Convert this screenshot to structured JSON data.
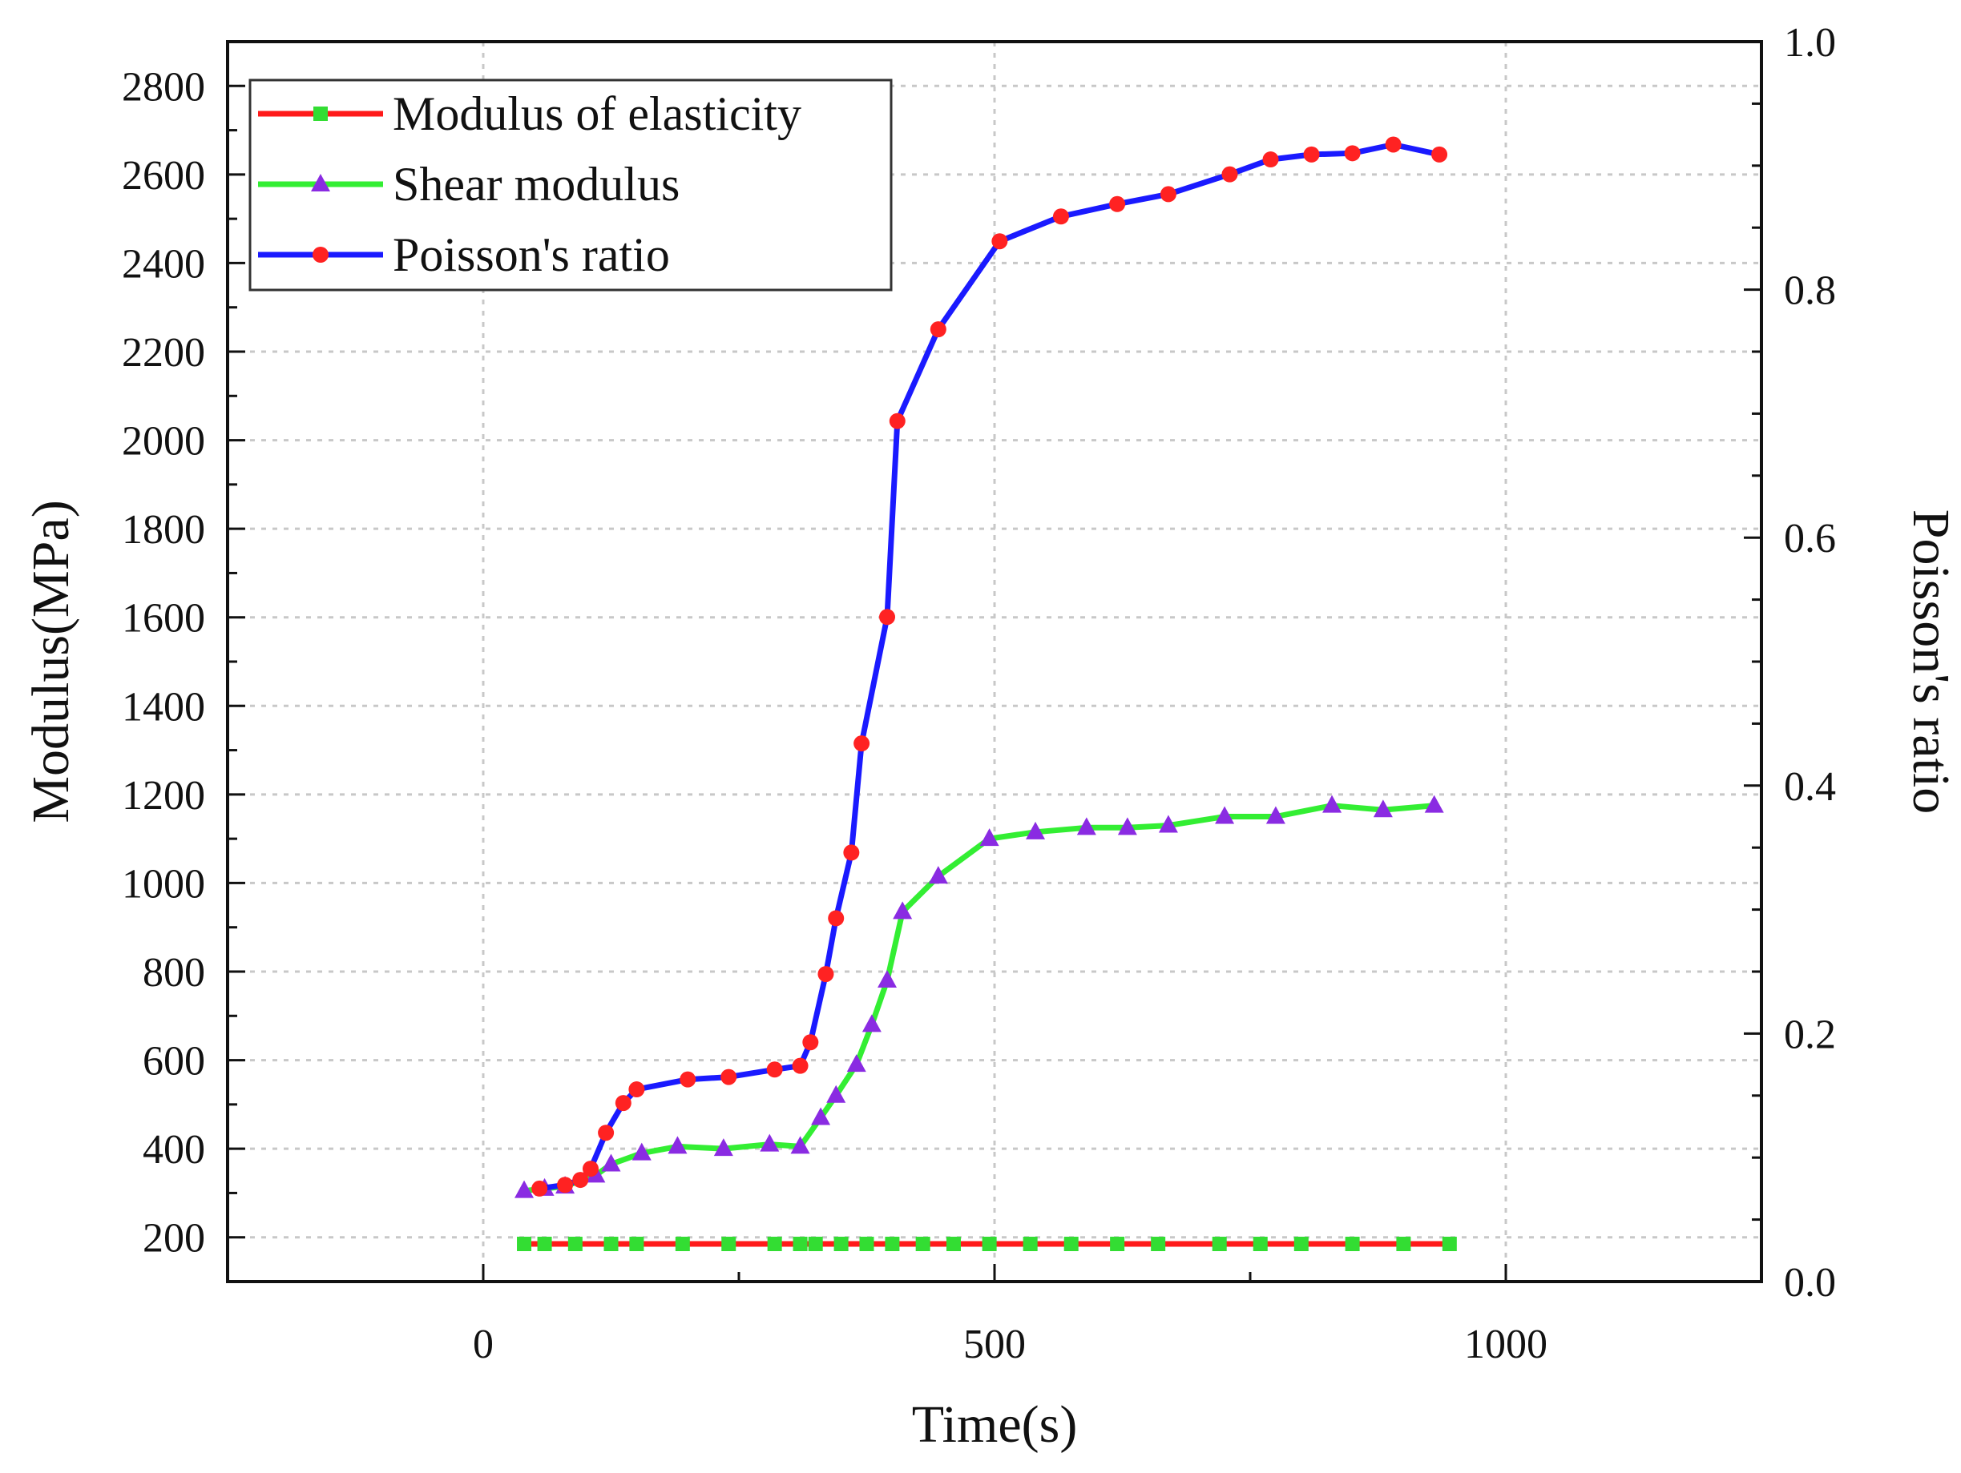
{
  "chart_data": {
    "type": "line",
    "title": "",
    "xlabel": "Time(s)",
    "ylabel": "Modulus(MPa)",
    "y2label": "Poisson's ratio",
    "xlim": [
      -250,
      1250
    ],
    "ylim": [
      100,
      2900
    ],
    "y2lim": [
      0.0,
      1.0
    ],
    "grid": true,
    "legend_position": "top-left",
    "x_ticks": [
      "0",
      "500",
      "1000"
    ],
    "y_ticks": [
      "200",
      "400",
      "600",
      "800",
      "1000",
      "1200",
      "1400",
      "1600",
      "1800",
      "2000",
      "2200",
      "2400",
      "2600",
      "2800"
    ],
    "y2_ticks": [
      "0.0",
      "0.2",
      "0.4",
      "0.6",
      "0.8",
      "1.0"
    ],
    "series": [
      {
        "name": "Modulus of elasticity",
        "axis": "left",
        "line_color": "#ff1a1a",
        "marker": "square",
        "marker_color": "#33dd33",
        "x": [
          40,
          60,
          90,
          125,
          150,
          195,
          240,
          285,
          310,
          325,
          350,
          375,
          400,
          430,
          460,
          495,
          535,
          575,
          620,
          660,
          720,
          760,
          800,
          850,
          900,
          945
        ],
        "y": [
          185,
          185,
          185,
          185,
          185,
          185,
          185,
          185,
          185,
          185,
          185,
          185,
          185,
          185,
          185,
          185,
          185,
          185,
          185,
          185,
          185,
          185,
          185,
          185,
          185,
          185
        ]
      },
      {
        "name": "Shear modulus",
        "axis": "left",
        "line_color": "#33ee33",
        "marker": "triangle",
        "marker_color": "#8a2be2",
        "x": [
          40,
          60,
          80,
          110,
          125,
          155,
          190,
          235,
          280,
          310,
          330,
          345,
          365,
          380,
          395,
          410,
          445,
          495,
          540,
          590,
          630,
          670,
          725,
          775,
          830,
          880,
          930
        ],
        "y": [
          305,
          310,
          315,
          340,
          365,
          390,
          405,
          400,
          410,
          405,
          470,
          520,
          590,
          680,
          780,
          935,
          1015,
          1100,
          1115,
          1125,
          1125,
          1130,
          1150,
          1150,
          1175,
          1165,
          1175
        ]
      },
      {
        "name": "Poisson's ratio",
        "axis": "right",
        "line_color": "#1a1aff",
        "marker": "circle",
        "marker_color": "#ff2222",
        "x": [
          55,
          80,
          95,
          105,
          120,
          137,
          150,
          200,
          240,
          285,
          310,
          320,
          335,
          345,
          360,
          370,
          395,
          405,
          445,
          505,
          565,
          620,
          670,
          730,
          770,
          810,
          850,
          890,
          935
        ],
        "y": [
          0.075,
          0.078,
          0.082,
          0.091,
          0.12,
          0.144,
          0.155,
          0.163,
          0.165,
          0.171,
          0.174,
          0.193,
          0.248,
          0.293,
          0.346,
          0.434,
          0.536,
          0.694,
          0.768,
          0.839,
          0.859,
          0.869,
          0.877,
          0.893,
          0.905,
          0.909,
          0.91,
          0.917,
          0.909
        ]
      }
    ]
  }
}
